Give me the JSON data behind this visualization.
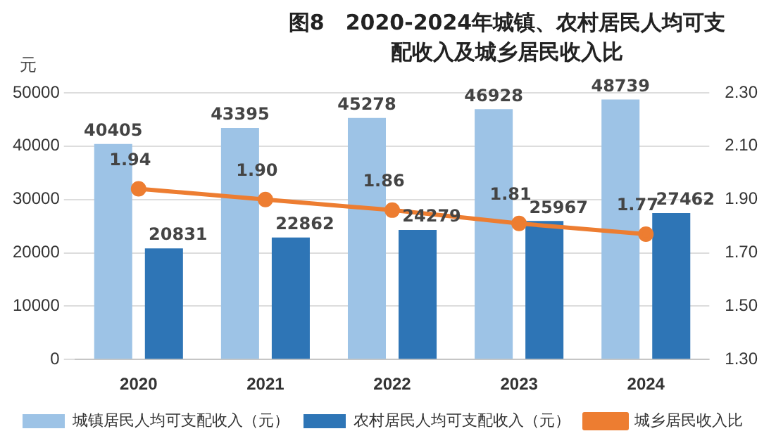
{
  "chart_data": {
    "type": "bar",
    "title": "图8　2020-2024年城镇、农村居民人均可支配收入及城乡居民收入比",
    "ylabel": "元",
    "categories": [
      "2020",
      "2021",
      "2022",
      "2023",
      "2024"
    ],
    "series": [
      {
        "name": "城镇居民人均可支配收入（元）",
        "color": "#9dc3e6",
        "values": [
          40405,
          43395,
          45278,
          46928,
          48739
        ]
      },
      {
        "name": "农村居民人均可支配收入（元）",
        "color": "#2e75b6",
        "values": [
          20831,
          22862,
          24279,
          25967,
          27462
        ]
      },
      {
        "name": "城乡居民收入比",
        "type": "line",
        "axis": "y2",
        "color": "#ed7d31",
        "marker": "circle",
        "values": [
          1.94,
          1.9,
          1.86,
          1.81,
          1.77
        ],
        "value_labels": [
          "1.94",
          "1.90",
          "1.86",
          "1.81",
          "1.77"
        ]
      }
    ],
    "ylim": [
      0,
      50000
    ],
    "yticks": [
      0,
      10000,
      20000,
      30000,
      40000,
      50000
    ],
    "y2lim": [
      1.3,
      2.3
    ],
    "y2ticks": [
      {
        "value": 1.3,
        "label": "1.30"
      },
      {
        "value": 1.5,
        "label": "1.50"
      },
      {
        "value": 1.7,
        "label": "1.70"
      },
      {
        "value": 1.9,
        "label": "1.90"
      },
      {
        "value": 2.1,
        "label": "2.10"
      },
      {
        "value": 2.3,
        "label": "2.30"
      }
    ],
    "grid": "y",
    "legend": "bottom",
    "data_labels": true
  }
}
